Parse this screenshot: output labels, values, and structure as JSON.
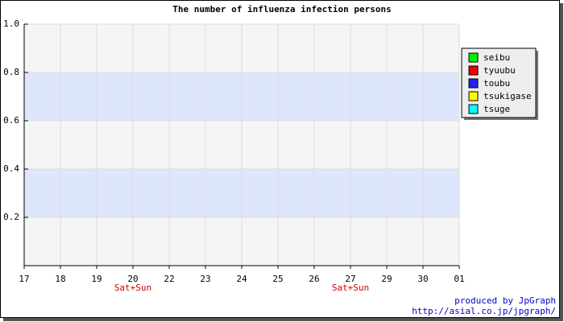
{
  "chart_data": {
    "type": "line",
    "title": "The number of influenza infection persons",
    "categories": [
      "17",
      "18",
      "19",
      "20",
      "22",
      "23",
      "24",
      "25",
      "26",
      "27",
      "29",
      "30",
      "01"
    ],
    "x_sublabels": [
      null,
      null,
      null,
      "Sat+Sun",
      null,
      null,
      null,
      null,
      null,
      "Sat+Sun",
      null,
      null,
      null
    ],
    "series": [
      {
        "name": "seibu",
        "color": "#00ee00",
        "values": [
          null,
          null,
          null,
          null,
          null,
          null,
          null,
          null,
          null,
          null,
          null,
          null,
          null
        ]
      },
      {
        "name": "tyuubu",
        "color": "#ee0000",
        "values": [
          null,
          null,
          null,
          null,
          null,
          null,
          null,
          null,
          null,
          null,
          null,
          null,
          null
        ]
      },
      {
        "name": "toubu",
        "color": "#2222ee",
        "values": [
          null,
          null,
          null,
          null,
          null,
          null,
          null,
          null,
          null,
          null,
          null,
          null,
          null
        ]
      },
      {
        "name": "tsukigase",
        "color": "#ffff00",
        "values": [
          null,
          null,
          null,
          null,
          null,
          null,
          null,
          null,
          null,
          null,
          null,
          null,
          null
        ]
      },
      {
        "name": "tsuge",
        "color": "#00ffff",
        "values": [
          null,
          null,
          null,
          null,
          null,
          null,
          null,
          null,
          null,
          null,
          null,
          null,
          null
        ]
      }
    ],
    "ylim": [
      0,
      1
    ],
    "yticks": [
      0.2,
      0.4,
      0.6,
      0.8,
      {
        "value": 1,
        "label": "1.0"
      }
    ],
    "grid": true,
    "band_color": "#dde6fb",
    "plot_background": "#f5f5f5",
    "legend_position": "right",
    "footer": [
      "produced by JpGraph",
      "http://asial.co.jp/jpgraph/"
    ]
  }
}
